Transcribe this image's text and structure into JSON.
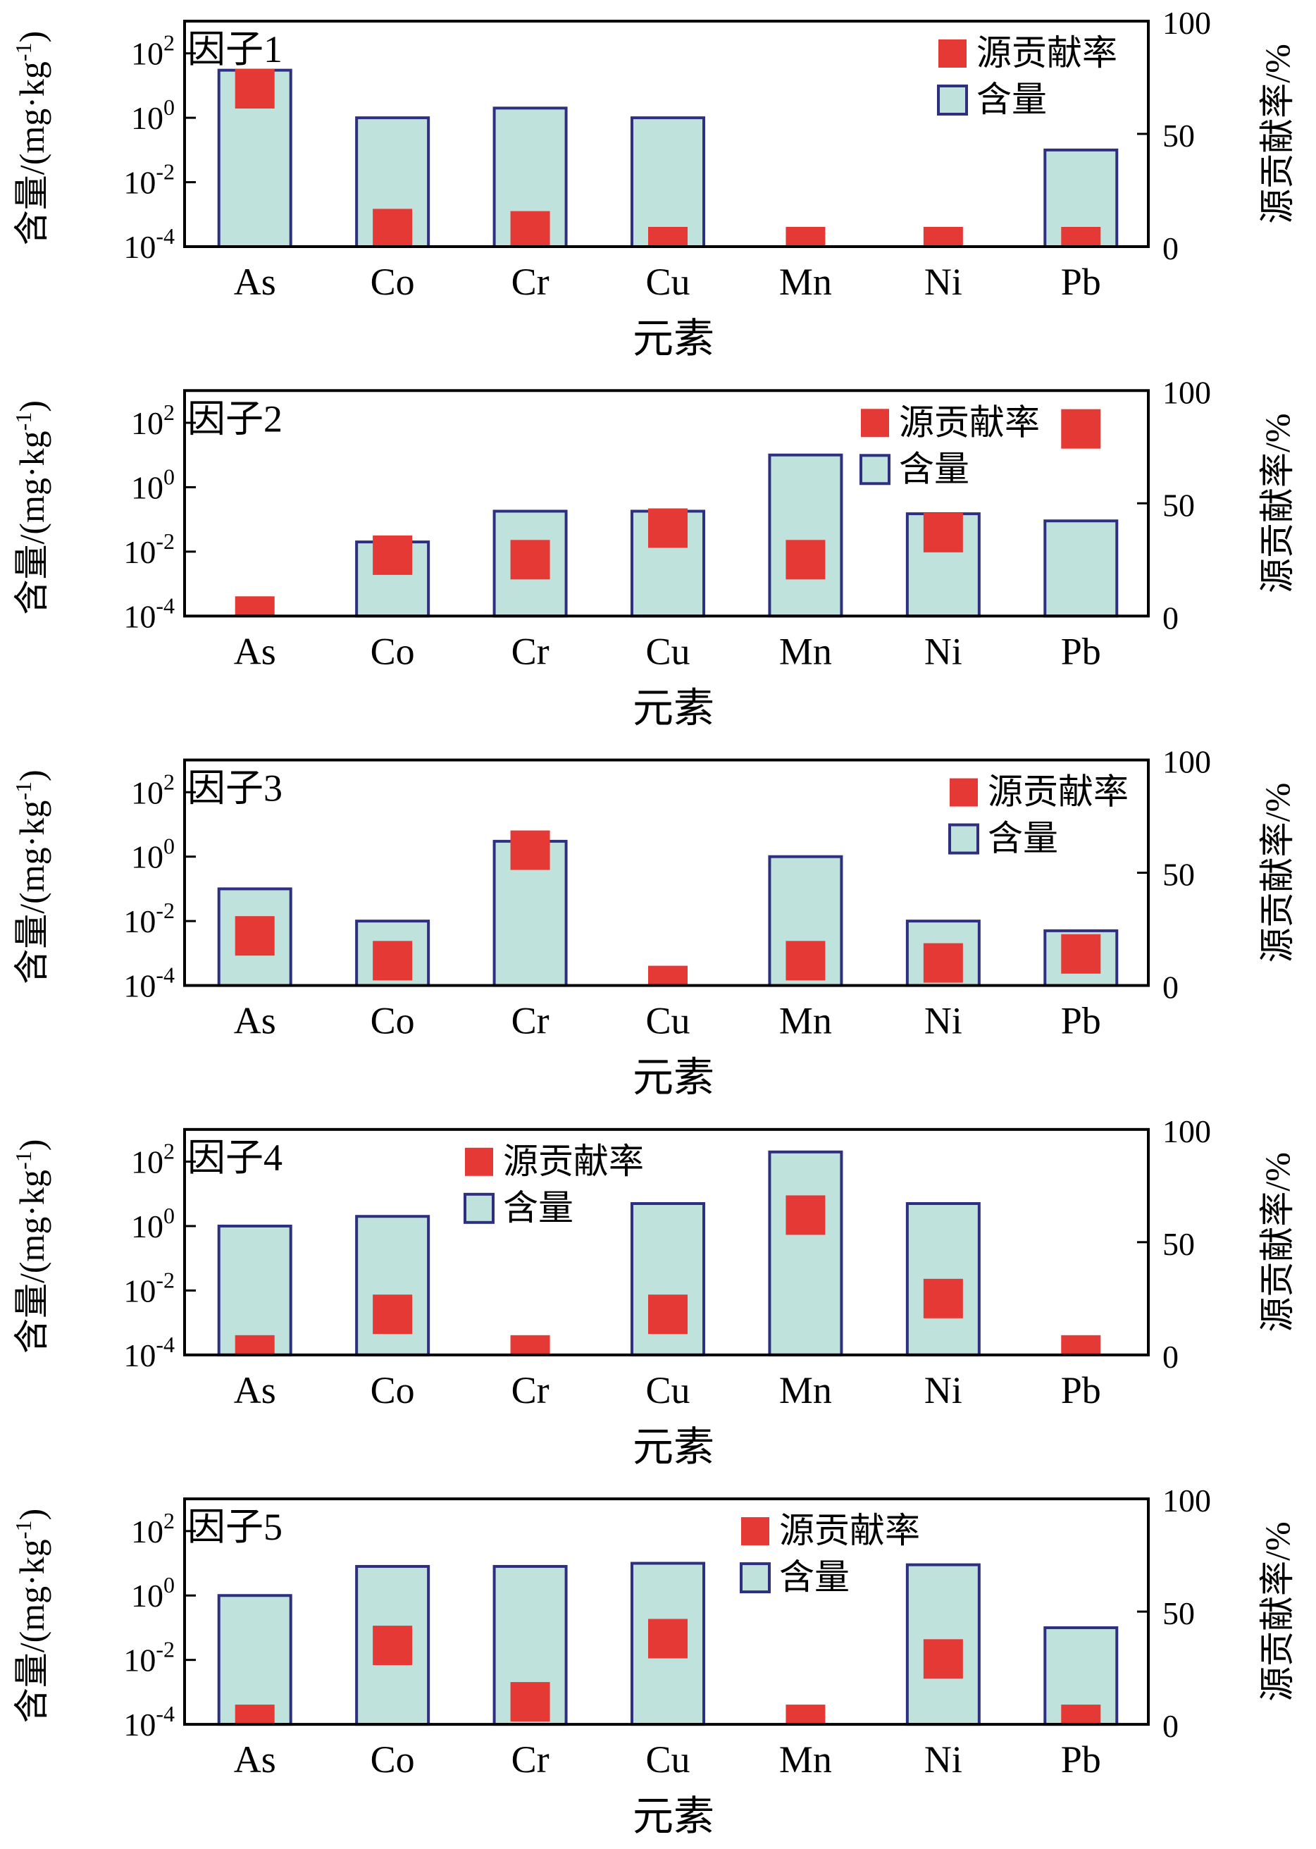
{
  "chart_data": [
    {
      "type": "bar",
      "title": "因子1",
      "xlabel": "元素",
      "ylabel": "含量/(mg·kg-1)",
      "ylabel2": "源贡献率/%",
      "yscale": "log",
      "ylim": [
        0.0001,
        1000
      ],
      "yticks": [
        "10-4",
        "10-2",
        "100",
        "102"
      ],
      "y2lim": [
        0,
        100
      ],
      "y2ticks": [
        "0",
        "50",
        "100"
      ],
      "categories": [
        "As",
        "Co",
        "Cr",
        "Cu",
        "Mn",
        "Ni",
        "Pb"
      ],
      "legend": [
        "源贡献率",
        "含量"
      ],
      "legend_position": "top-right",
      "series": [
        {
          "name": "含量",
          "kind": "bar",
          "axis": "left",
          "color": "#c0e2dc",
          "edge": "#2f2f7f",
          "values": [
            30,
            1,
            2,
            1,
            null,
            null,
            0.1
          ]
        },
        {
          "name": "源贡献率",
          "kind": "marker",
          "axis": "right",
          "color": "#e53935",
          "values": [
            70,
            8,
            7,
            6,
            4,
            4,
            6
          ]
        }
      ]
    },
    {
      "type": "bar",
      "title": "因子2",
      "xlabel": "元素",
      "ylabel": "含量/(mg·kg-1)",
      "ylabel2": "源贡献率/%",
      "yscale": "log",
      "ylim": [
        0.0001,
        1000
      ],
      "yticks": [
        "10-4",
        "10-2",
        "100",
        "102"
      ],
      "y2lim": [
        0,
        100
      ],
      "y2ticks": [
        "0",
        "50",
        "100"
      ],
      "categories": [
        "As",
        "Co",
        "Cr",
        "Cu",
        "Mn",
        "Ni",
        "Pb"
      ],
      "legend": [
        "源贡献率",
        "含量"
      ],
      "legend_position": "top-right",
      "series": [
        {
          "name": "含量",
          "kind": "bar",
          "axis": "left",
          "color": "#c0e2dc",
          "edge": "#2f2f7f",
          "values": [
            null,
            0.02,
            0.18,
            0.18,
            10,
            0.15,
            0.09
          ]
        },
        {
          "name": "源贡献率",
          "kind": "marker",
          "axis": "right",
          "color": "#e53935",
          "values": [
            4,
            27,
            25,
            39,
            25,
            37,
            83
          ]
        }
      ]
    },
    {
      "type": "bar",
      "title": "因子3",
      "xlabel": "元素",
      "ylabel": "含量/(mg·kg-1)",
      "ylabel2": "源贡献率/%",
      "yscale": "log",
      "ylim": [
        0.0001,
        1000
      ],
      "yticks": [
        "10-4",
        "10-2",
        "100",
        "102"
      ],
      "y2lim": [
        0,
        100
      ],
      "y2ticks": [
        "0",
        "50",
        "100"
      ],
      "categories": [
        "As",
        "Co",
        "Cr",
        "Cu",
        "Mn",
        "Ni",
        "Pb"
      ],
      "legend": [
        "源贡献率",
        "含量"
      ],
      "legend_position": "top-right",
      "series": [
        {
          "name": "含量",
          "kind": "bar",
          "axis": "left",
          "color": "#c0e2dc",
          "edge": "#2f2f7f",
          "values": [
            0.1,
            0.01,
            3,
            null,
            1,
            0.01,
            0.005
          ]
        },
        {
          "name": "源贡献率",
          "kind": "marker",
          "axis": "right",
          "color": "#e53935",
          "values": [
            22,
            11,
            60,
            4,
            11,
            10,
            14
          ]
        }
      ]
    },
    {
      "type": "bar",
      "title": "因子4",
      "xlabel": "元素",
      "ylabel": "含量/(mg·kg-1)",
      "ylabel2": "源贡献率/%",
      "yscale": "log",
      "ylim": [
        0.0001,
        1000
      ],
      "yticks": [
        "10-4",
        "10-2",
        "100",
        "102"
      ],
      "y2lim": [
        0,
        100
      ],
      "y2ticks": [
        "0",
        "50",
        "100"
      ],
      "categories": [
        "As",
        "Co",
        "Cr",
        "Cu",
        "Mn",
        "Ni",
        "Pb"
      ],
      "legend": [
        "源贡献率",
        "含量"
      ],
      "legend_position": "top-center",
      "series": [
        {
          "name": "含量",
          "kind": "bar",
          "axis": "left",
          "color": "#c0e2dc",
          "edge": "#2f2f7f",
          "values": [
            1,
            2,
            null,
            5,
            200,
            5,
            null
          ]
        },
        {
          "name": "源贡献率",
          "kind": "marker",
          "axis": "right",
          "color": "#e53935",
          "values": [
            5,
            18,
            4,
            18,
            62,
            25,
            4
          ]
        }
      ]
    },
    {
      "type": "bar",
      "title": "因子5",
      "xlabel": "元素",
      "ylabel": "含量/(mg·kg-1)",
      "ylabel2": "源贡献率/%",
      "yscale": "log",
      "ylim": [
        0.0001,
        1000
      ],
      "yticks": [
        "10-4",
        "10-2",
        "100",
        "102"
      ],
      "y2lim": [
        0,
        100
      ],
      "y2ticks": [
        "0",
        "50",
        "100"
      ],
      "categories": [
        "As",
        "Co",
        "Cr",
        "Cu",
        "Mn",
        "Ni",
        "Pb"
      ],
      "legend": [
        "源贡献率",
        "含量"
      ],
      "legend_position": "top-right",
      "series": [
        {
          "name": "含量",
          "kind": "bar",
          "axis": "left",
          "color": "#c0e2dc",
          "edge": "#2f2f7f",
          "values": [
            1,
            8,
            8,
            10,
            null,
            9,
            0.1
          ]
        },
        {
          "name": "源贡献率",
          "kind": "marker",
          "axis": "right",
          "color": "#e53935",
          "values": [
            5,
            35,
            10,
            38,
            4,
            29,
            4
          ]
        }
      ]
    }
  ]
}
